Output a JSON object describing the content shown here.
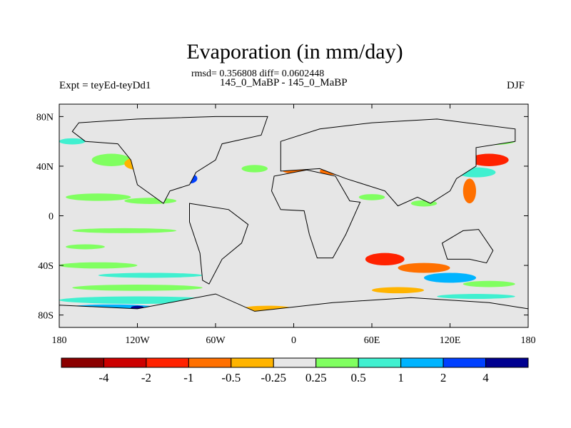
{
  "header": {
    "title": "Evaporation (in mm/day)",
    "stats": "rmsd= 0.356808 diff= 0.0602448",
    "case": "145_0_MaBP - 145_0_MaBP",
    "experiment": "Expt = teyEd-teyDd1",
    "season": "DJF"
  },
  "map": {
    "background_color": "#e6e6e6",
    "lon_ticks": [
      {
        "value": -180,
        "label": "180"
      },
      {
        "value": -120,
        "label": "120W"
      },
      {
        "value": -60,
        "label": "60W"
      },
      {
        "value": 0,
        "label": "0"
      },
      {
        "value": 60,
        "label": "60E"
      },
      {
        "value": 120,
        "label": "120E"
      },
      {
        "value": 180,
        "label": "180"
      }
    ],
    "lat_ticks": [
      {
        "value": 80,
        "label": "80N"
      },
      {
        "value": 40,
        "label": "40N"
      },
      {
        "value": 0,
        "label": "0"
      },
      {
        "value": -40,
        "label": "40S"
      },
      {
        "value": -80,
        "label": "80S"
      }
    ],
    "lat_range": [
      -90,
      90
    ],
    "lon_range": [
      -180,
      180
    ],
    "field": [
      {
        "lon": -170,
        "lat": 75,
        "w": 30,
        "h": 8,
        "cls": 5
      },
      {
        "lon": -140,
        "lat": 62,
        "w": 30,
        "h": 6,
        "cls": 6
      },
      {
        "lon": -170,
        "lat": 60,
        "w": 20,
        "h": 5,
        "cls": 7
      },
      {
        "lon": -140,
        "lat": 45,
        "w": 30,
        "h": 10,
        "cls": 6
      },
      {
        "lon": -120,
        "lat": 42,
        "w": 20,
        "h": 10,
        "cls": 4
      },
      {
        "lon": -95,
        "lat": 55,
        "w": 30,
        "h": 8,
        "cls": 7
      },
      {
        "lon": -85,
        "lat": 40,
        "w": 18,
        "h": 10,
        "cls": 8
      },
      {
        "lon": -80,
        "lat": 30,
        "w": 12,
        "h": 8,
        "cls": 9
      },
      {
        "lon": -150,
        "lat": 15,
        "w": 50,
        "h": 6,
        "cls": 6
      },
      {
        "lon": -110,
        "lat": 12,
        "w": 40,
        "h": 5,
        "cls": 6
      },
      {
        "lon": -130,
        "lat": -12,
        "w": 80,
        "h": 4,
        "cls": 6
      },
      {
        "lon": -160,
        "lat": -25,
        "w": 30,
        "h": 4,
        "cls": 6
      },
      {
        "lon": -150,
        "lat": -40,
        "w": 60,
        "h": 5,
        "cls": 6
      },
      {
        "lon": -110,
        "lat": -48,
        "w": 80,
        "h": 4,
        "cls": 7
      },
      {
        "lon": -120,
        "lat": -58,
        "w": 100,
        "h": 5,
        "cls": 6
      },
      {
        "lon": -120,
        "lat": -68,
        "w": 120,
        "h": 6,
        "cls": 7
      },
      {
        "lon": -140,
        "lat": -74,
        "w": 70,
        "h": 5,
        "cls": 8
      },
      {
        "lon": -120,
        "lat": -74,
        "w": 10,
        "h": 3,
        "cls": 10
      },
      {
        "lon": -60,
        "lat": -74,
        "w": 50,
        "h": 5,
        "cls": 5
      },
      {
        "lon": -20,
        "lat": -75,
        "w": 40,
        "h": 5,
        "cls": 4
      },
      {
        "lon": -30,
        "lat": 38,
        "w": 20,
        "h": 6,
        "cls": 6
      },
      {
        "lon": 0,
        "lat": 38,
        "w": 20,
        "h": 8,
        "cls": 3
      },
      {
        "lon": 30,
        "lat": 36,
        "w": 20,
        "h": 6,
        "cls": 3
      },
      {
        "lon": 60,
        "lat": 35,
        "w": 20,
        "h": 6,
        "cls": 2
      },
      {
        "lon": 90,
        "lat": 28,
        "w": 20,
        "h": 5,
        "cls": 6
      },
      {
        "lon": 20,
        "lat": 10,
        "w": 40,
        "h": 8,
        "cls": 3
      },
      {
        "lon": 60,
        "lat": 15,
        "w": 20,
        "h": 5,
        "cls": 6
      },
      {
        "lon": 100,
        "lat": 10,
        "w": 20,
        "h": 5,
        "cls": 6
      },
      {
        "lon": 150,
        "lat": 45,
        "w": 30,
        "h": 10,
        "cls": 2
      },
      {
        "lon": 140,
        "lat": 35,
        "w": 30,
        "h": 8,
        "cls": 7
      },
      {
        "lon": 135,
        "lat": 20,
        "w": 10,
        "h": 20,
        "cls": 3
      },
      {
        "lon": 150,
        "lat": 60,
        "w": 40,
        "h": 6,
        "cls": 6
      },
      {
        "lon": 70,
        "lat": -35,
        "w": 30,
        "h": 10,
        "cls": 2
      },
      {
        "lon": 100,
        "lat": -42,
        "w": 40,
        "h": 8,
        "cls": 3
      },
      {
        "lon": 120,
        "lat": -50,
        "w": 40,
        "h": 8,
        "cls": 8
      },
      {
        "lon": 80,
        "lat": -60,
        "w": 40,
        "h": 5,
        "cls": 4
      },
      {
        "lon": 150,
        "lat": -55,
        "w": 40,
        "h": 5,
        "cls": 6
      },
      {
        "lon": 140,
        "lat": -65,
        "w": 60,
        "h": 4,
        "cls": 7
      }
    ],
    "continents": [
      {
        "name": "north-america",
        "points": [
          [
            -165,
            75
          ],
          [
            -120,
            78
          ],
          [
            -60,
            80
          ],
          [
            -20,
            80
          ],
          [
            -25,
            65
          ],
          [
            -55,
            58
          ],
          [
            -60,
            45
          ],
          [
            -75,
            35
          ],
          [
            -80,
            25
          ],
          [
            -95,
            20
          ],
          [
            -100,
            10
          ],
          [
            -120,
            25
          ],
          [
            -125,
            45
          ],
          [
            -135,
            58
          ],
          [
            -160,
            60
          ],
          [
            -170,
            68
          ]
        ]
      },
      {
        "name": "south-america",
        "points": [
          [
            -80,
            10
          ],
          [
            -50,
            5
          ],
          [
            -35,
            -7
          ],
          [
            -40,
            -22
          ],
          [
            -55,
            -35
          ],
          [
            -65,
            -55
          ],
          [
            -70,
            -52
          ],
          [
            -72,
            -30
          ],
          [
            -80,
            -5
          ]
        ]
      },
      {
        "name": "eurasia",
        "points": [
          [
            -10,
            36
          ],
          [
            -10,
            60
          ],
          [
            20,
            70
          ],
          [
            60,
            75
          ],
          [
            110,
            78
          ],
          [
            170,
            70
          ],
          [
            170,
            60
          ],
          [
            140,
            55
          ],
          [
            140,
            40
          ],
          [
            125,
            30
          ],
          [
            120,
            20
          ],
          [
            105,
            10
          ],
          [
            95,
            15
          ],
          [
            80,
            8
          ],
          [
            70,
            20
          ],
          [
            55,
            25
          ],
          [
            40,
            30
          ],
          [
            20,
            38
          ]
        ]
      },
      {
        "name": "africa",
        "points": [
          [
            -17,
            20
          ],
          [
            -15,
            32
          ],
          [
            10,
            37
          ],
          [
            32,
            32
          ],
          [
            43,
            12
          ],
          [
            51,
            11
          ],
          [
            40,
            -15
          ],
          [
            30,
            -34
          ],
          [
            18,
            -34
          ],
          [
            12,
            -15
          ],
          [
            8,
            4
          ],
          [
            -10,
            5
          ]
        ]
      },
      {
        "name": "australia",
        "points": [
          [
            114,
            -22
          ],
          [
            130,
            -12
          ],
          [
            142,
            -11
          ],
          [
            153,
            -28
          ],
          [
            148,
            -38
          ],
          [
            135,
            -35
          ],
          [
            118,
            -35
          ]
        ]
      },
      {
        "name": "antarctica",
        "points": [
          [
            -180,
            -72
          ],
          [
            -120,
            -75
          ],
          [
            -60,
            -63
          ],
          [
            -30,
            -77
          ],
          [
            30,
            -70
          ],
          [
            90,
            -66
          ],
          [
            150,
            -70
          ],
          [
            180,
            -75
          ],
          [
            180,
            -90
          ],
          [
            -180,
            -90
          ]
        ]
      }
    ]
  },
  "colorbar": {
    "colors": [
      "#8b0000",
      "#cc0000",
      "#ff2200",
      "#ff7000",
      "#ffb400",
      "#e6e6e6",
      "#80ff60",
      "#40f0d0",
      "#00b4ff",
      "#0040ff",
      "#000090"
    ],
    "labels": [
      "-4",
      "-2",
      "-1",
      "-0.5",
      "-0.25",
      "0.25",
      "0.5",
      "1",
      "2",
      "4"
    ]
  }
}
